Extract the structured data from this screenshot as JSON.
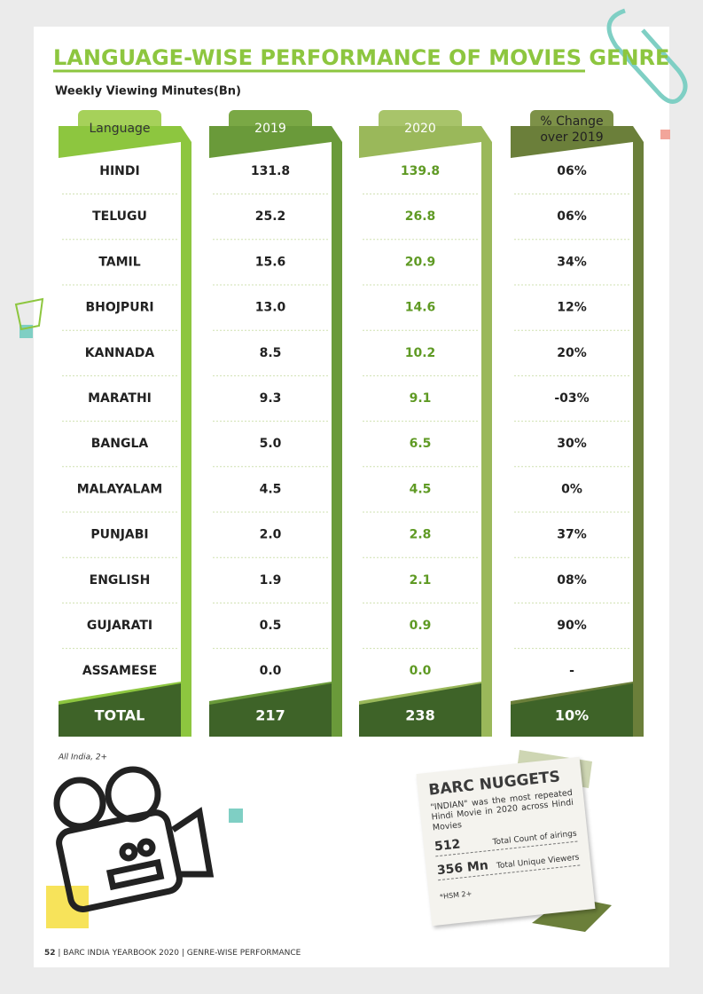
{
  "header": {
    "title": "LANGUAGE-WISE PERFORMANCE OF MOVIES GENRE",
    "subtitle": "Weekly Viewing Minutes(Bn)"
  },
  "table": {
    "headers": [
      [
        "Language"
      ],
      [
        "2019"
      ],
      [
        "2020"
      ],
      [
        "% Change",
        "over 2019"
      ]
    ],
    "rows": [
      [
        "HINDI",
        "131.8",
        "139.8",
        "06%"
      ],
      [
        "TELUGU",
        "25.2",
        "26.8",
        "06%"
      ],
      [
        "TAMIL",
        "15.6",
        "20.9",
        "34%"
      ],
      [
        "BHOJPURI",
        "13.0",
        "14.6",
        "12%"
      ],
      [
        "KANNADA",
        "8.5",
        "10.2",
        "20%"
      ],
      [
        "MARATHI",
        "9.3",
        "9.1",
        "-03%"
      ],
      [
        "BANGLA",
        "5.0",
        "6.5",
        "30%"
      ],
      [
        "MALAYALAM",
        "4.5",
        "4.5",
        "0%"
      ],
      [
        "PUNJABI",
        "2.0",
        "2.8",
        "37%"
      ],
      [
        "ENGLISH",
        "1.9",
        "2.1",
        "08%"
      ],
      [
        "GUJARATI",
        "0.5",
        "0.9",
        "90%"
      ],
      [
        "ASSAMESE",
        "0.0",
        "0.0",
        "-"
      ]
    ],
    "total": [
      "TOTAL",
      "217",
      "238",
      "10%"
    ]
  },
  "footnote": "All India, 2+",
  "nuggets": {
    "title": "BARC NUGGETS",
    "text": "\"INDIAN\" was the most repeated Hindi Movie in 2020 across Hindi Movies",
    "stats": [
      {
        "value": "512",
        "label": "Total Count of airings"
      },
      {
        "value": "356 Mn",
        "label": "Total Unique Viewers"
      }
    ],
    "note": "*HSM 2+"
  },
  "footer": {
    "page": "52",
    "text": "BARC INDIA YEARBOOK 2020 | GENRE-WISE PERFORMANCE"
  }
}
